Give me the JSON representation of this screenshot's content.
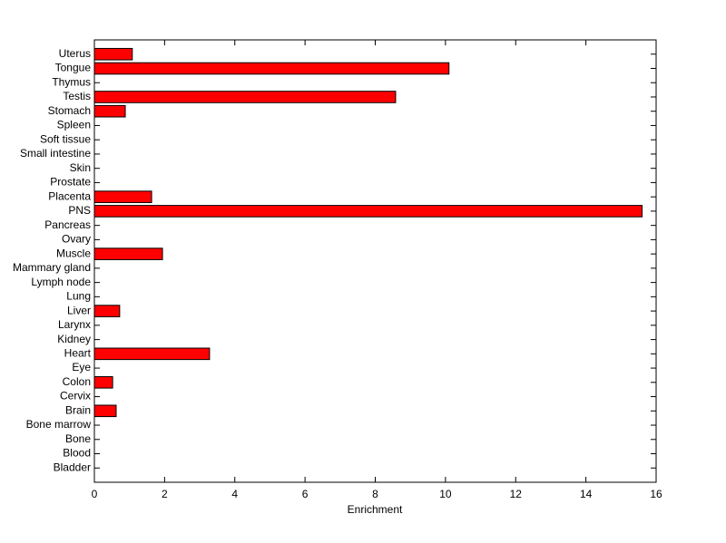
{
  "chart_data": {
    "type": "barh",
    "xlabel": "Enrichment",
    "categories": [
      "Bladder",
      "Blood",
      "Bone",
      "Bone marrow",
      "Brain",
      "Cervix",
      "Colon",
      "Eye",
      "Heart",
      "Kidney",
      "Larynx",
      "Liver",
      "Lung",
      "Lymph node",
      "Mammary gland",
      "Muscle",
      "Ovary",
      "Pancreas",
      "PNS",
      "Placenta",
      "Prostate",
      "Skin",
      "Small intestine",
      "Soft tissue",
      "Spleen",
      "Stomach",
      "Testis",
      "Thymus",
      "Tongue",
      "Uterus"
    ],
    "values": [
      0,
      0,
      0,
      0,
      0.62,
      0,
      0.52,
      0,
      3.28,
      0,
      0,
      0.72,
      0,
      0,
      0,
      1.94,
      0,
      0,
      15.6,
      1.63,
      0,
      0,
      0,
      0,
      0,
      0.88,
      8.58,
      0,
      10.1,
      1.08
    ],
    "color": "#ff0000",
    "xlim": [
      0,
      16
    ],
    "xticks": [
      0,
      2,
      4,
      6,
      8,
      10,
      12,
      14,
      16
    ]
  }
}
